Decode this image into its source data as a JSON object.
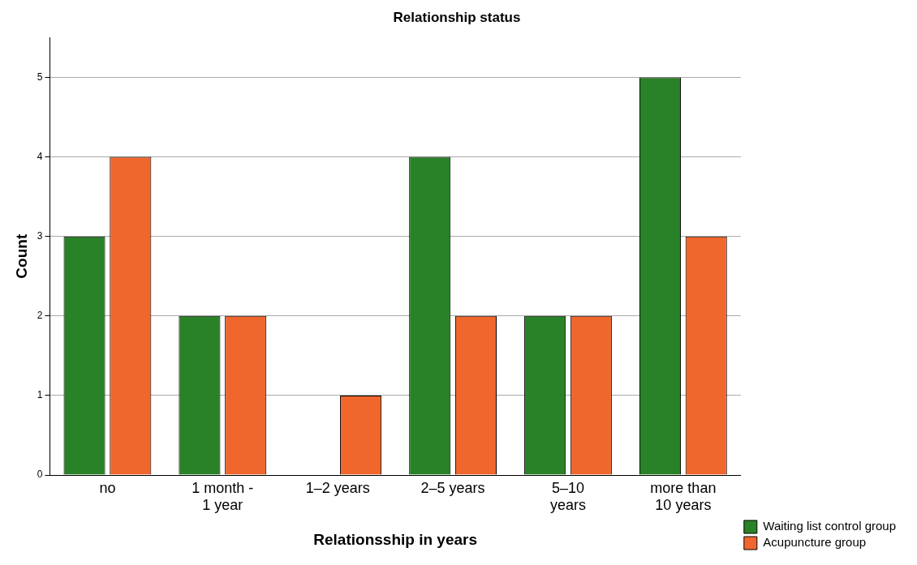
{
  "chart_data": {
    "type": "bar",
    "title": "Relationship status",
    "xlabel": "Relationsship in years",
    "ylabel": "Count",
    "categories": [
      "no",
      "1 month - 1 year",
      "1–2 years",
      "2–5 years",
      "5–10 years",
      "more than 10 years"
    ],
    "series": [
      {
        "name": "Waiting list control group",
        "color": "#2a8228",
        "values": [
          3,
          2,
          0,
          4,
          2,
          5
        ]
      },
      {
        "name": "Acupuncture group",
        "color": "#f0672e",
        "values": [
          4,
          2,
          1,
          2,
          2,
          3
        ]
      }
    ],
    "ylim": [
      0,
      5.5
    ],
    "yticks": [
      0,
      1,
      2,
      3,
      4,
      5
    ],
    "grid": "y",
    "legend": "bottom right"
  }
}
